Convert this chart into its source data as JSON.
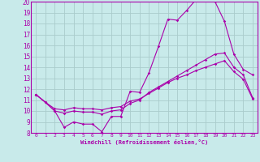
{
  "xlabel": "Windchill (Refroidissement éolien,°C)",
  "xlim": [
    -0.5,
    23.5
  ],
  "ylim": [
    8,
    20
  ],
  "yticks": [
    8,
    9,
    10,
    11,
    12,
    13,
    14,
    15,
    16,
    17,
    18,
    19,
    20
  ],
  "xticks": [
    0,
    1,
    2,
    3,
    4,
    5,
    6,
    7,
    8,
    9,
    10,
    11,
    12,
    13,
    14,
    15,
    16,
    17,
    18,
    19,
    20,
    21,
    22,
    23
  ],
  "bg_color": "#c8eaea",
  "line_color": "#aa00aa",
  "grid_color": "#aacccc",
  "line1_x": [
    0,
    1,
    2,
    3,
    4,
    5,
    6,
    7,
    8,
    9,
    10,
    11,
    12,
    13,
    14,
    15,
    16,
    17,
    18,
    19,
    20,
    21,
    22,
    23
  ],
  "line1_y": [
    11.5,
    10.8,
    10.0,
    8.5,
    9.0,
    8.8,
    8.8,
    8.1,
    9.5,
    9.5,
    11.8,
    11.7,
    13.5,
    15.9,
    18.4,
    18.3,
    19.2,
    20.2,
    20.2,
    20.0,
    18.2,
    15.2,
    13.8,
    13.3
  ],
  "line2_x": [
    0,
    1,
    2,
    3,
    4,
    5,
    6,
    7,
    8,
    9,
    10,
    11,
    12,
    13,
    14,
    15,
    16,
    17,
    18,
    19,
    20,
    21,
    22,
    23
  ],
  "line2_y": [
    11.5,
    10.8,
    10.0,
    9.8,
    10.0,
    9.9,
    9.9,
    9.7,
    10.0,
    10.1,
    10.7,
    11.0,
    11.7,
    12.2,
    12.7,
    13.2,
    13.7,
    14.2,
    14.7,
    15.2,
    15.3,
    14.0,
    13.3,
    11.2
  ],
  "line3_x": [
    0,
    1,
    2,
    3,
    4,
    5,
    6,
    7,
    8,
    9,
    10,
    11,
    12,
    13,
    14,
    15,
    16,
    17,
    18,
    19,
    20,
    21,
    22,
    23
  ],
  "line3_y": [
    11.5,
    10.8,
    10.2,
    10.1,
    10.3,
    10.2,
    10.2,
    10.1,
    10.3,
    10.4,
    10.9,
    11.1,
    11.6,
    12.1,
    12.6,
    13.0,
    13.3,
    13.7,
    14.0,
    14.3,
    14.6,
    13.6,
    12.9,
    11.1
  ]
}
